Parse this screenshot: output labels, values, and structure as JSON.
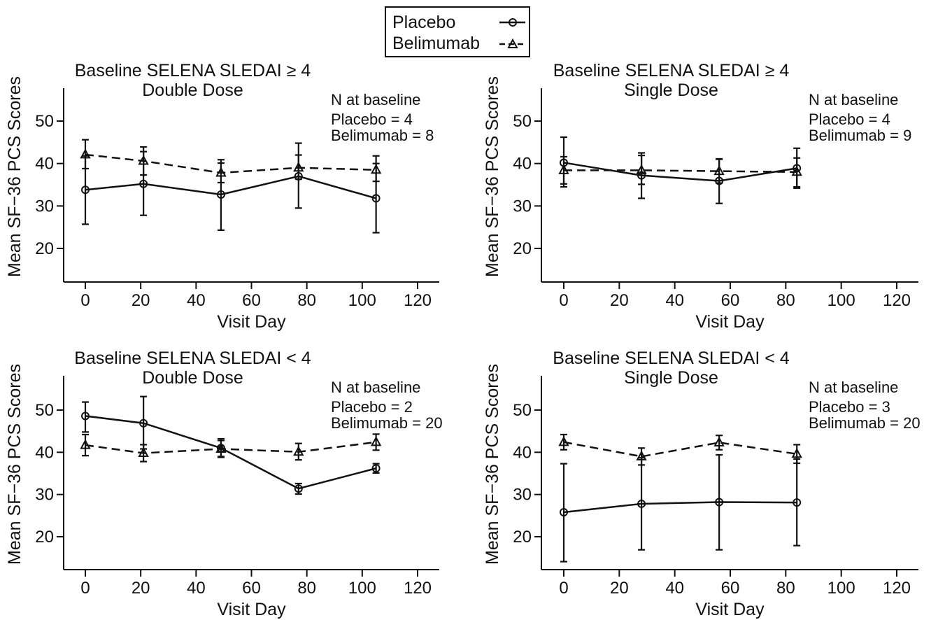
{
  "legend": [
    {
      "name": "Placebo",
      "marker": "circle",
      "dash": "solid"
    },
    {
      "name": "Belimumab",
      "marker": "triangle",
      "dash": "dashed"
    }
  ],
  "colors": {
    "ink": "#111111",
    "background": "#ffffff"
  },
  "chart_data": [
    {
      "type": "line",
      "title": "Baseline SELENA SLEDAI ≥ 4",
      "subtitle": "Double Dose",
      "xlabel": "Visit Day",
      "ylabel": "Mean SF−36 PCS Scores",
      "xlim": [
        -8,
        128
      ],
      "ylim": [
        12,
        58
      ],
      "xticks": [
        0,
        20,
        40,
        60,
        80,
        100,
        120
      ],
      "yticks": [
        20,
        30,
        40,
        50
      ],
      "annotation": {
        "heading": "N at baseline",
        "lines": [
          "Placebo = 4",
          "Belimumab = 8"
        ]
      },
      "series": [
        {
          "name": "Placebo",
          "marker": "circle",
          "dash": "solid",
          "x": [
            0,
            21,
            49,
            77,
            105
          ],
          "y": [
            33.8,
            35.2,
            32.7,
            37.0,
            31.8
          ],
          "err_low": [
            25.7,
            27.8,
            24.3,
            29.5,
            23.7
          ],
          "err_high": [
            41.8,
            42.8,
            40.9,
            44.8,
            40.0
          ]
        },
        {
          "name": "Belimumab",
          "marker": "triangle",
          "dash": "dashed",
          "x": [
            0,
            21,
            49,
            77,
            105
          ],
          "y": [
            42.1,
            40.6,
            37.8,
            39.0,
            38.5
          ],
          "err_low": [
            38.8,
            37.3,
            35.5,
            36.3,
            35.8
          ],
          "err_high": [
            45.6,
            43.9,
            40.1,
            42.0,
            41.8
          ]
        }
      ]
    },
    {
      "type": "line",
      "title": "Baseline SELENA SLEDAI ≥ 4",
      "subtitle": "Single Dose",
      "xlabel": "Visit Day",
      "ylabel": "Mean SF−36 PCS Scores",
      "xlim": [
        -8,
        128
      ],
      "ylim": [
        12,
        58
      ],
      "xticks": [
        0,
        20,
        40,
        60,
        80,
        100,
        120
      ],
      "yticks": [
        20,
        30,
        40,
        50
      ],
      "annotation": {
        "heading": "N at baseline",
        "lines": [
          "Placebo = 4",
          "Belimumab = 9"
        ]
      },
      "series": [
        {
          "name": "Placebo",
          "marker": "circle",
          "dash": "solid",
          "x": [
            0,
            28,
            56,
            84
          ],
          "y": [
            40.2,
            37.2,
            35.9,
            38.9
          ],
          "err_low": [
            34.5,
            31.8,
            30.6,
            34.2
          ],
          "err_high": [
            46.2,
            42.5,
            41.1,
            43.6
          ]
        },
        {
          "name": "Belimumab",
          "marker": "triangle",
          "dash": "dashed",
          "x": [
            0,
            28,
            56,
            84
          ],
          "y": [
            38.4,
            38.4,
            38.2,
            38.0
          ],
          "err_low": [
            35.2,
            35.1,
            35.4,
            34.5
          ],
          "err_high": [
            41.6,
            41.9,
            41.0,
            41.3
          ]
        }
      ]
    },
    {
      "type": "line",
      "title": "Baseline SELENA SLEDAI < 4",
      "subtitle": "Double Dose",
      "xlabel": "Visit Day",
      "ylabel": "Mean SF−36 PCS Scores",
      "xlim": [
        -8,
        128
      ],
      "ylim": [
        12,
        58
      ],
      "xticks": [
        0,
        20,
        40,
        60,
        80,
        100,
        120
      ],
      "yticks": [
        20,
        30,
        40,
        50
      ],
      "annotation": {
        "heading": "N at baseline",
        "lines": [
          "Placebo = 2",
          "Belimumab = 20"
        ]
      },
      "series": [
        {
          "name": "Placebo",
          "marker": "circle",
          "dash": "solid",
          "x": [
            0,
            21,
            49,
            77,
            105
          ],
          "y": [
            48.6,
            46.9,
            41.0,
            31.4,
            36.2
          ],
          "err_low": [
            44.8,
            40.8,
            39.0,
            30.1,
            35.1
          ],
          "err_high": [
            51.9,
            53.2,
            43.2,
            32.6,
            37.3
          ]
        },
        {
          "name": "Belimumab",
          "marker": "triangle",
          "dash": "dashed",
          "x": [
            0,
            21,
            49,
            77,
            105
          ],
          "y": [
            41.7,
            39.8,
            40.8,
            40.1,
            42.4
          ],
          "err_low": [
            39.2,
            37.8,
            38.8,
            38.2,
            40.5
          ],
          "err_high": [
            44.2,
            41.8,
            42.8,
            42.1,
            44.3
          ]
        }
      ]
    },
    {
      "type": "line",
      "title": "Baseline SELENA SLEDAI < 4",
      "subtitle": "Single Dose",
      "xlabel": "Visit Day",
      "ylabel": "Mean SF−36 PCS Scores",
      "xlim": [
        -8,
        128
      ],
      "ylim": [
        12,
        58
      ],
      "xticks": [
        0,
        20,
        40,
        60,
        80,
        100,
        120
      ],
      "yticks": [
        20,
        30,
        40,
        50
      ],
      "annotation": {
        "heading": "N at baseline",
        "lines": [
          "Placebo = 3",
          "Belimumab = 20"
        ]
      },
      "series": [
        {
          "name": "Placebo",
          "marker": "circle",
          "dash": "solid",
          "x": [
            0,
            28,
            56,
            84
          ],
          "y": [
            25.8,
            27.8,
            28.2,
            28.1
          ],
          "err_low": [
            14.1,
            16.9,
            16.9,
            17.9
          ],
          "err_high": [
            37.3,
            38.7,
            39.4,
            38.4
          ]
        },
        {
          "name": "Belimumab",
          "marker": "triangle",
          "dash": "dashed",
          "x": [
            0,
            28,
            56,
            84
          ],
          "y": [
            42.4,
            39.0,
            42.3,
            39.6
          ],
          "err_low": [
            40.6,
            37.0,
            40.6,
            37.4
          ],
          "err_high": [
            44.2,
            41.0,
            44.0,
            41.8
          ]
        }
      ]
    }
  ]
}
